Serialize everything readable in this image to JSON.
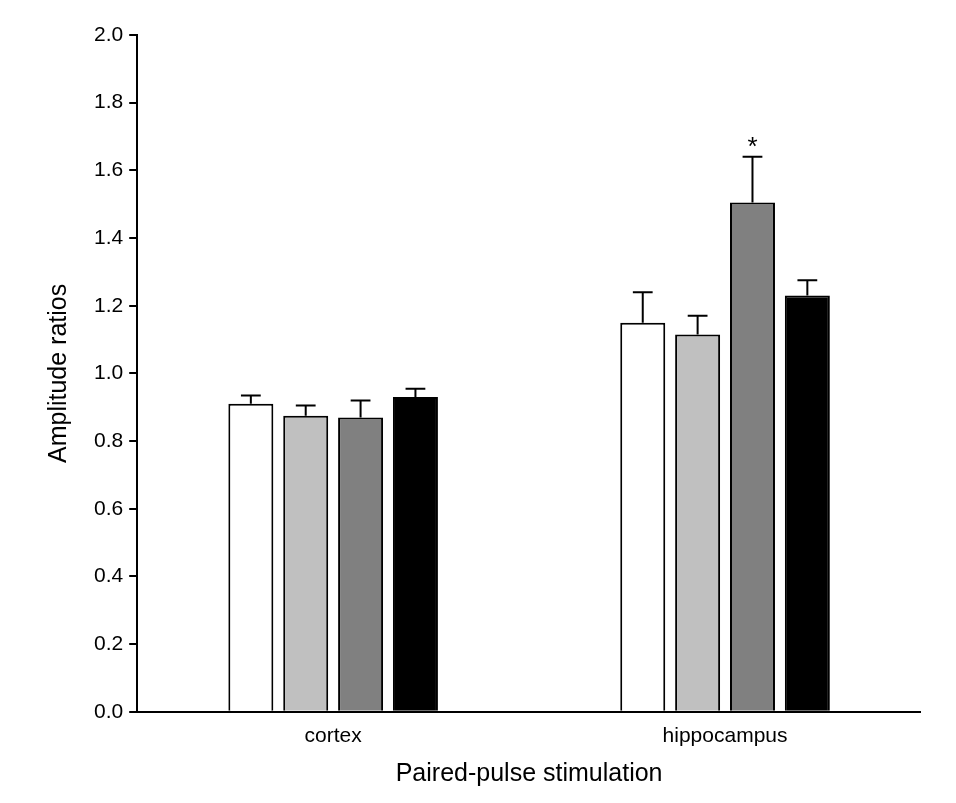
{
  "chart_data": {
    "type": "bar",
    "x_label": "Paired-pulse stimulation",
    "y_label": "Amplitude ratios",
    "categories": [
      "cortex",
      "hippocampus"
    ],
    "series": [
      {
        "color": "#ffffff",
        "values": [
          0.91,
          1.15
        ],
        "errors": [
          0.025,
          0.09
        ]
      },
      {
        "color": "#c0c0c0",
        "values": [
          0.875,
          1.115
        ],
        "errors": [
          0.03,
          0.055
        ]
      },
      {
        "color": "#808080",
        "values": [
          0.87,
          1.505
        ],
        "errors": [
          0.05,
          0.135
        ]
      },
      {
        "color": "#000000",
        "values": [
          0.93,
          1.23
        ],
        "errors": [
          0.025,
          0.045
        ]
      }
    ],
    "ylim": [
      0,
      2
    ],
    "yticks": [
      {
        "value": 0,
        "label": "0.0"
      },
      0.2,
      0.4,
      0.6,
      0.8,
      {
        "value": 1,
        "label": "1.0"
      },
      1.2,
      1.4,
      1.6,
      1.8,
      {
        "value": 2,
        "label": "2.0"
      }
    ],
    "grid": false,
    "annotations": [
      {
        "text": "*",
        "category": 1,
        "series": 2
      }
    ]
  }
}
